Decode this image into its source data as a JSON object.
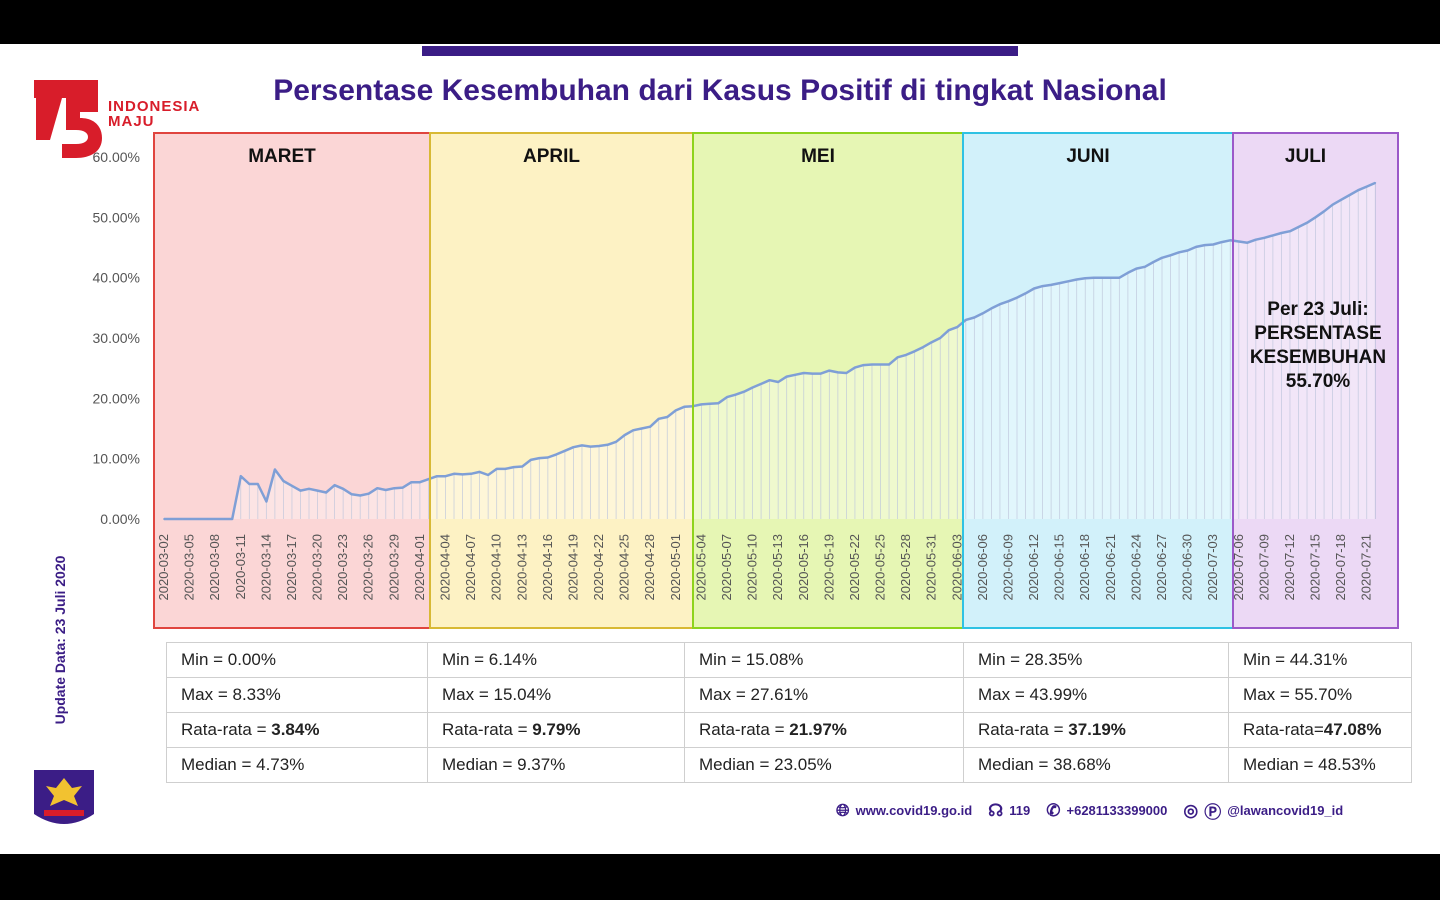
{
  "logo": {
    "line1": "INDONESIA",
    "line2": "MAJU"
  },
  "title": "Persentase Kesembuhan dari Kasus Positif di tingkat Nasional",
  "side_update": "Update Data: 23 Juli 2020",
  "annotation": [
    "Per 23 Juli:",
    "PERSENTASE",
    "KESEMBUHAN",
    "55.70%"
  ],
  "footer": {
    "website": "www.covid19.go.id",
    "hotline": "119",
    "whatsapp": "+6281133399000",
    "social": "@lawancovid19_id"
  },
  "colors": {
    "brand": "#3b1d86",
    "line": "#7f9fd6",
    "red": "#d81d2a"
  },
  "months": [
    {
      "name": "MARET",
      "fill": "#fbd6d6",
      "border": "#e0453f"
    },
    {
      "name": "APRIL",
      "fill": "#fdf2c4",
      "border": "#d8b934"
    },
    {
      "name": "MEI",
      "fill": "#e6f6b4",
      "border": "#8ed31c"
    },
    {
      "name": "JUNI",
      "fill": "#d2f1fa",
      "border": "#2fc2e3"
    },
    {
      "name": "JULI",
      "fill": "#ecd9f5",
      "border": "#9b59c9"
    }
  ],
  "stats": [
    {
      "min": "Min = 0.00%",
      "max": "Max = 8.33%",
      "avg_label": "Rata-rata = ",
      "avg_value": "3.84%",
      "median": "Median = 4.73%"
    },
    {
      "min": "Min = 6.14%",
      "max": "Max = 15.04%",
      "avg_label": "Rata-rata = ",
      "avg_value": "9.79%",
      "median": "Median = 9.37%"
    },
    {
      "min": "Min = 15.08%",
      "max": "Max = 27.61%",
      "avg_label": "Rata-rata = ",
      "avg_value": "21.97%",
      "median": "Median = 23.05%"
    },
    {
      "min": "Min = 28.35%",
      "max": "Max = 43.99%",
      "avg_label": "Rata-rata = ",
      "avg_value": "37.19%",
      "median": "Median = 38.68%"
    },
    {
      "min": "Min = 44.31%",
      "max": "Max = 55.70%",
      "avg_label": "Rata-rata=",
      "avg_value": "47.08%",
      "median": "Median = 48.53%"
    }
  ],
  "chart_data": {
    "type": "area",
    "title": "Persentase Kesembuhan dari Kasus Positif di tingkat Nasional",
    "xlabel": "",
    "ylabel": "",
    "ylim": [
      0,
      60
    ],
    "yticks": [
      "0.00%",
      "10.00%",
      "20.00%",
      "30.00%",
      "40.00%",
      "50.00%",
      "60.00%"
    ],
    "xticks": [
      "2020-03-02",
      "2020-03-05",
      "2020-03-08",
      "2020-03-11",
      "2020-03-14",
      "2020-03-17",
      "2020-03-20",
      "2020-03-23",
      "2020-03-26",
      "2020-03-29",
      "2020-04-01",
      "2020-04-04",
      "2020-04-07",
      "2020-04-10",
      "2020-04-13",
      "2020-04-16",
      "2020-04-19",
      "2020-04-22",
      "2020-04-25",
      "2020-04-28",
      "2020-05-01",
      "2020-05-04",
      "2020-05-07",
      "2020-05-10",
      "2020-05-13",
      "2020-05-16",
      "2020-05-19",
      "2020-05-22",
      "2020-05-25",
      "2020-05-28",
      "2020-05-31",
      "2020-06-03",
      "2020-06-06",
      "2020-06-09",
      "2020-06-12",
      "2020-06-15",
      "2020-06-18",
      "2020-06-21",
      "2020-06-24",
      "2020-06-27",
      "2020-06-30",
      "2020-07-03",
      "2020-07-06",
      "2020-07-09",
      "2020-07-12",
      "2020-07-15",
      "2020-07-18",
      "2020-07-21"
    ],
    "series": [
      {
        "start": "2020-03-02",
        "end": "2020-07-23",
        "unit": "%",
        "values": [
          0,
          0,
          0,
          0,
          0,
          0,
          0,
          0,
          0,
          7.1,
          5.8,
          5.8,
          2.9,
          8.2,
          6.3,
          5.5,
          4.7,
          5.0,
          4.7,
          4.4,
          5.6,
          5.0,
          4.1,
          3.9,
          4.2,
          5.1,
          4.8,
          5.1,
          5.2,
          6.1,
          6.1,
          6.6,
          7.1,
          7.1,
          7.5,
          7.4,
          7.5,
          7.8,
          7.3,
          8.3,
          8.3,
          8.6,
          8.7,
          9.8,
          10.1,
          10.2,
          10.7,
          11.3,
          11.9,
          12.2,
          12.0,
          12.1,
          12.3,
          12.8,
          13.9,
          14.7,
          15.0,
          15.3,
          16.6,
          16.9,
          18.0,
          18.6,
          18.7,
          19.0,
          19.1,
          19.2,
          20.2,
          20.6,
          21.1,
          21.8,
          22.4,
          23.0,
          22.7,
          23.6,
          23.9,
          24.2,
          24.1,
          24.1,
          24.6,
          24.3,
          24.2,
          25.1,
          25.5,
          25.6,
          25.6,
          25.6,
          26.8,
          27.2,
          27.8,
          28.5,
          29.3,
          30.0,
          31.3,
          31.8,
          33.0,
          33.4,
          34.1,
          34.9,
          35.6,
          36.1,
          36.7,
          37.4,
          38.2,
          38.6,
          38.8,
          39.1,
          39.4,
          39.7,
          39.9,
          40.0,
          40.0,
          40.0,
          40.0,
          40.8,
          41.5,
          41.8,
          42.6,
          43.3,
          43.7,
          44.2,
          44.5,
          45.1,
          45.4,
          45.5,
          45.9,
          46.2,
          46.0,
          45.8,
          46.3,
          46.6,
          47.0,
          47.4,
          47.7,
          48.4,
          49.1,
          50.0,
          51.0,
          52.1,
          52.9,
          53.7,
          54.5,
          55.1,
          55.7
        ]
      }
    ],
    "regions": [
      "MARET",
      "APRIL",
      "MEI",
      "JUNI",
      "JULI"
    ]
  }
}
